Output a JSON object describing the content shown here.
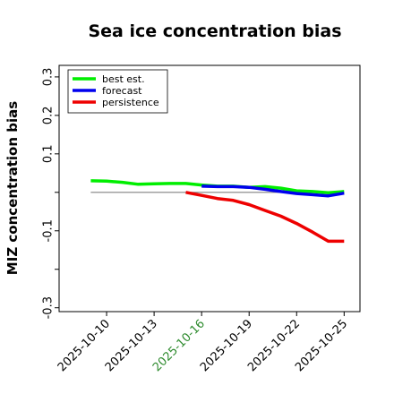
{
  "chart_data": {
    "type": "line",
    "title": "Sea ice concentration bias",
    "ylabel": "MIZ concentration bias",
    "xlabel": "",
    "ylim": [
      -0.31,
      0.33
    ],
    "yticks": [
      0.3,
      0.2,
      0.1,
      0.0,
      -0.1,
      -0.2,
      -0.3
    ],
    "ytick_labels": [
      "0.3",
      "0.2",
      "0.1",
      "",
      "-0.1",
      "",
      "-0.3"
    ],
    "xlim": [
      "2025-10-07",
      "2025-10-26"
    ],
    "xticks": [
      "2025-10-10",
      "2025-10-13",
      "2025-10-16",
      "2025-10-19",
      "2025-10-22",
      "2025-10-25"
    ],
    "highlight_tick": "2025-10-16",
    "highlight_color": "#2e8b2e",
    "zero_line": {
      "x0": "2025-10-09",
      "x1": "2025-10-25",
      "color": "#808080"
    },
    "legend": {
      "position": "top-left"
    },
    "series": [
      {
        "name": "best est.",
        "color": "#00ee00",
        "x": [
          "2025-10-09",
          "2025-10-10",
          "2025-10-11",
          "2025-10-12",
          "2025-10-13",
          "2025-10-14",
          "2025-10-15",
          "2025-10-16",
          "2025-10-17",
          "2025-10-18",
          "2025-10-19",
          "2025-10-20",
          "2025-10-21",
          "2025-10-22",
          "2025-10-23",
          "2025-10-24",
          "2025-10-25"
        ],
        "values": [
          0.03,
          0.029,
          0.026,
          0.021,
          0.022,
          0.023,
          0.023,
          0.019,
          0.016,
          0.016,
          0.013,
          0.015,
          0.011,
          0.004,
          0.002,
          -0.001,
          0.002
        ]
      },
      {
        "name": "forecast",
        "color": "#0000ee",
        "x": [
          "2025-10-16",
          "2025-10-17",
          "2025-10-18",
          "2025-10-19",
          "2025-10-20",
          "2025-10-21",
          "2025-10-22",
          "2025-10-23",
          "2025-10-24",
          "2025-10-25"
        ],
        "values": [
          0.016,
          0.015,
          0.015,
          0.013,
          0.008,
          0.002,
          -0.003,
          -0.006,
          -0.009,
          -0.002
        ]
      },
      {
        "name": "persistence",
        "color": "#ee0000",
        "x": [
          "2025-10-15",
          "2025-10-16",
          "2025-10-17",
          "2025-10-18",
          "2025-10-19",
          "2025-10-20",
          "2025-10-21",
          "2025-10-22",
          "2025-10-23",
          "2025-10-24",
          "2025-10-25"
        ],
        "values": [
          0.0,
          -0.008,
          -0.016,
          -0.021,
          -0.032,
          -0.047,
          -0.062,
          -0.081,
          -0.103,
          -0.127,
          -0.127
        ]
      }
    ]
  }
}
